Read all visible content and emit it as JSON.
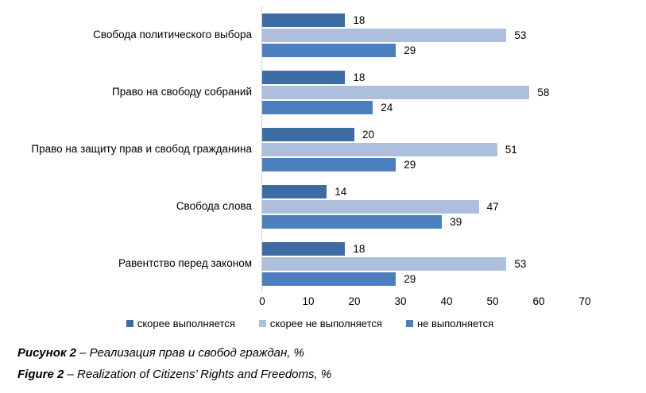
{
  "chart_data": {
    "type": "bar",
    "orientation": "horizontal",
    "title": "",
    "xlabel": "",
    "ylabel": "",
    "categories": [
      "Свобода политического выбора",
      "Право на свободу собраний",
      "Право на защиту прав и свобод гражданина",
      "Свобода слова",
      "Равентство перед законом"
    ],
    "series": [
      {
        "name": "скорее выполняется",
        "color": "#3d6ca5",
        "values": [
          18,
          18,
          20,
          14,
          18
        ]
      },
      {
        "name": "скорее не выполняется",
        "color": "#aebfdd",
        "values": [
          53,
          58,
          51,
          47,
          53
        ]
      },
      {
        "name": "не выполняется",
        "color": "#4d7fbe",
        "values": [
          29,
          24,
          29,
          39,
          29
        ]
      }
    ],
    "xlim": [
      0,
      70
    ],
    "x_ticks": [
      0,
      10,
      20,
      30,
      40,
      50,
      60,
      70
    ],
    "grid": false,
    "data_labels": true,
    "legend_position": "bottom",
    "axis_line_color": "#c9cdd2"
  },
  "captions": {
    "ru_label": "Рисунок 2",
    "ru_text": " – Реализация прав и свобод граждан, %",
    "en_label": "Figure 2",
    "en_text": " – Realization of Citizens’ Rights and Freedoms, %"
  }
}
